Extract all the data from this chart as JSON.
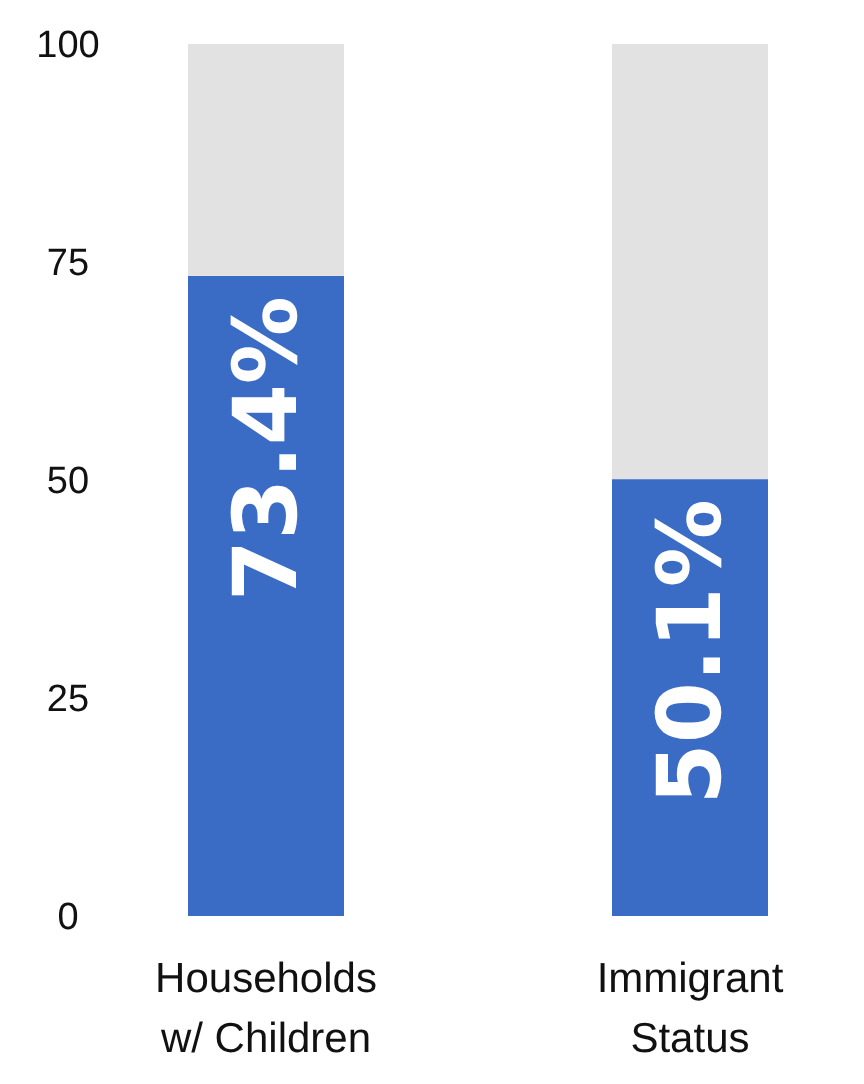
{
  "chart_data": {
    "type": "bar",
    "stacked": true,
    "categories": [
      "Households\nw/ Children",
      "Immigrant\nStatus"
    ],
    "series": [
      {
        "color": "#3a6cc6",
        "values": [
          73.4,
          50.1
        ],
        "value_labels": [
          "73.4%",
          "50.1%"
        ]
      },
      {
        "color": "#e2e2e2",
        "values": [
          26.6,
          49.9
        ]
      }
    ],
    "ylim": [
      0,
      100
    ],
    "yticks": [
      0,
      25,
      50,
      75,
      100
    ],
    "grid": false
  }
}
